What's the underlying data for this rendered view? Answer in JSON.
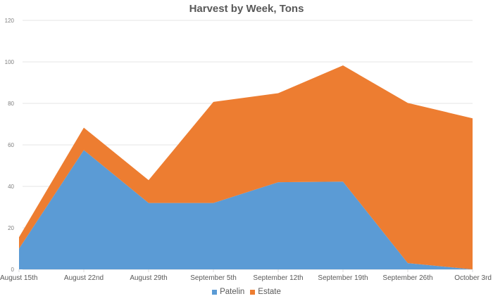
{
  "chart_data": {
    "type": "area",
    "stacked": true,
    "title": "Harvest by Week, Tons",
    "xlabel": "",
    "ylabel": "",
    "categories": [
      "August 15th",
      "August 22nd",
      "August 29th",
      "September 5th",
      "September 12th",
      "September 19th",
      "September 26th",
      "October 3rd"
    ],
    "series": [
      {
        "name": "Patelin",
        "color": "#5b9bd5",
        "values": [
          10,
          57.5,
          32,
          32,
          42,
          42.3,
          3,
          0
        ]
      },
      {
        "name": "Estate",
        "color": "#ed7d31",
        "values": [
          5.5,
          10.8,
          11,
          48.7,
          42.9,
          56,
          77.2,
          72.8
        ]
      }
    ],
    "totals": [
      15.5,
      68.3,
      43,
      80.7,
      84.9,
      98.3,
      80.2,
      72.8
    ],
    "ylim": [
      0,
      120
    ],
    "yticks": [
      0,
      20,
      40,
      60,
      80,
      100,
      120
    ],
    "grid": true,
    "legend_position": "bottom"
  }
}
